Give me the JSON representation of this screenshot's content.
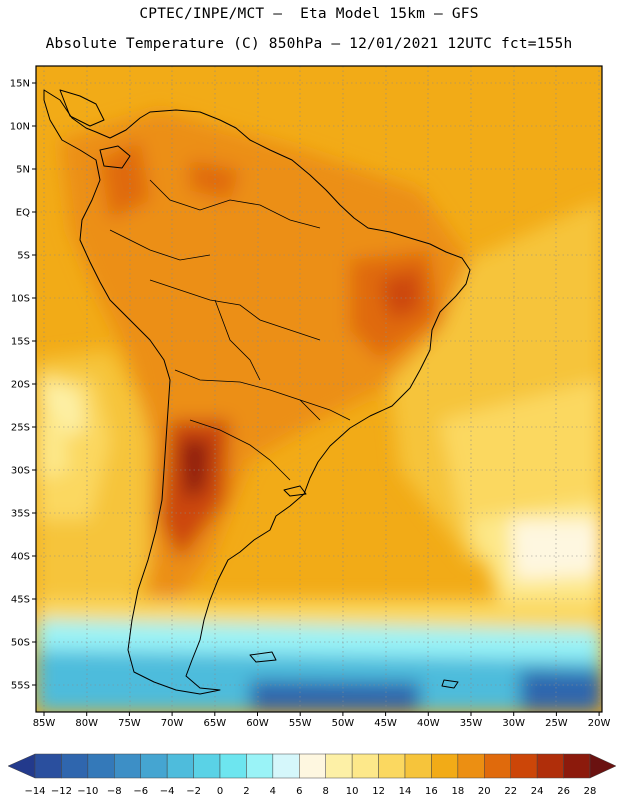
{
  "header": {
    "line1": "CPTEC/INPE/MCT –  Eta Model 15km – GFS",
    "line2": "Absolute Temperature (C) 850hPa – 12/01/2021 12UTC fct=155h"
  },
  "map": {
    "lat_labels": [
      "15N",
      "10N",
      "5N",
      "EQ",
      "5S",
      "10S",
      "15S",
      "20S",
      "25S",
      "30S",
      "35S",
      "40S",
      "45S",
      "50S",
      "55S"
    ],
    "lon_labels": [
      "85W",
      "80W",
      "75W",
      "70W",
      "65W",
      "60W",
      "55W",
      "50W",
      "45W",
      "40W",
      "35W",
      "30W",
      "25W",
      "20W"
    ],
    "lat_range": [
      15,
      -55
    ],
    "lon_range": [
      -85,
      -20
    ]
  },
  "colorbar": {
    "labels": [
      "-14",
      "-12",
      "-10",
      "-8",
      "-6",
      "-4",
      "-2",
      "0",
      "2",
      "4",
      "6",
      "8",
      "10",
      "12",
      "14",
      "16",
      "18",
      "20",
      "22",
      "24",
      "26",
      "28"
    ],
    "colors": [
      "#233a8c",
      "#2a4f9e",
      "#2f66ae",
      "#3479b9",
      "#3d8fc6",
      "#45a5d1",
      "#4ebcdc",
      "#5ad2e6",
      "#6de5ef",
      "#9af3f7",
      "#d5f7fb",
      "#fef7e0",
      "#fdf0a6",
      "#fde88a",
      "#fbd860",
      "#f6c43b",
      "#f2ab17",
      "#ec8f12",
      "#e06a0c",
      "#cc4608",
      "#b02e0a",
      "#8c1a0c",
      "#6a1210"
    ]
  }
}
